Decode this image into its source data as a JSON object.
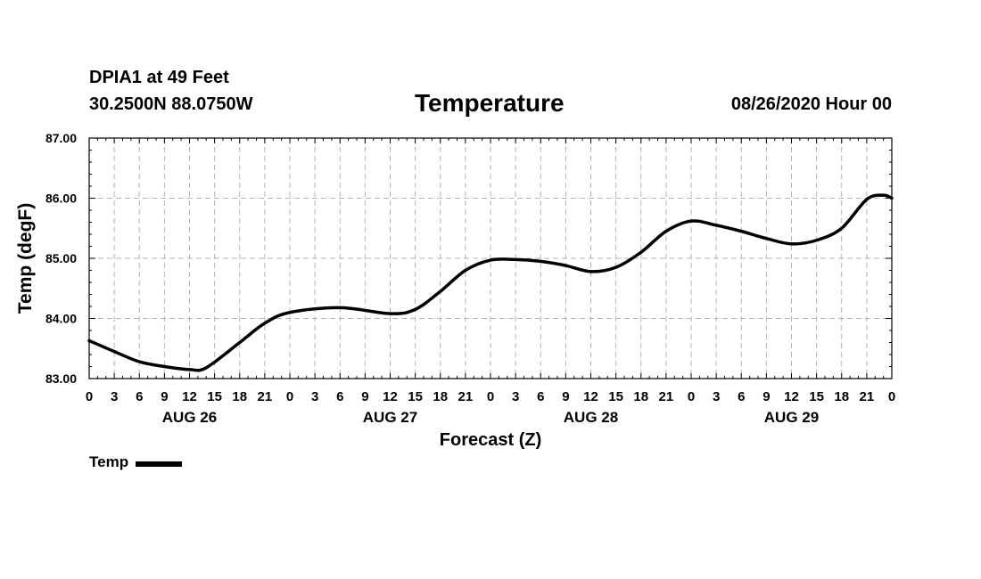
{
  "header": {
    "station": "DPIA1 at 49 Feet",
    "coords": "30.2500N 88.0750W",
    "title": "Temperature",
    "issued": "08/26/2020 Hour 00"
  },
  "legend": {
    "label": "Temp"
  },
  "colors": {
    "line": "#000000",
    "grid": "#b4b4b4",
    "frame": "#000000"
  },
  "chart_data": {
    "type": "line",
    "title": "Temperature",
    "xlabel": "Forecast (Z)",
    "ylabel": "Temp (degF)",
    "x_unit": "forecast hour",
    "xlim": [
      0,
      96
    ],
    "ylim": [
      83.0,
      87.0
    ],
    "grid": true,
    "legend_position": "bottom-left",
    "y_ticks": [
      {
        "value": 83.0,
        "label": "83.00"
      },
      {
        "value": 84.0,
        "label": "84.00"
      },
      {
        "value": 85.0,
        "label": "85.00"
      },
      {
        "value": 86.0,
        "label": "86.00"
      },
      {
        "value": 87.0,
        "label": "87.00"
      }
    ],
    "x_ticks": [
      {
        "value": 0,
        "label": "0"
      },
      {
        "value": 3,
        "label": "3"
      },
      {
        "value": 6,
        "label": "6"
      },
      {
        "value": 9,
        "label": "9"
      },
      {
        "value": 12,
        "label": "12"
      },
      {
        "value": 15,
        "label": "15"
      },
      {
        "value": 18,
        "label": "18"
      },
      {
        "value": 21,
        "label": "21"
      },
      {
        "value": 24,
        "label": "0"
      },
      {
        "value": 27,
        "label": "3"
      },
      {
        "value": 30,
        "label": "6"
      },
      {
        "value": 33,
        "label": "9"
      },
      {
        "value": 36,
        "label": "12"
      },
      {
        "value": 39,
        "label": "15"
      },
      {
        "value": 42,
        "label": "18"
      },
      {
        "value": 45,
        "label": "21"
      },
      {
        "value": 48,
        "label": "0"
      },
      {
        "value": 51,
        "label": "3"
      },
      {
        "value": 54,
        "label": "6"
      },
      {
        "value": 57,
        "label": "9"
      },
      {
        "value": 60,
        "label": "12"
      },
      {
        "value": 63,
        "label": "15"
      },
      {
        "value": 66,
        "label": "18"
      },
      {
        "value": 69,
        "label": "21"
      },
      {
        "value": 72,
        "label": "0"
      },
      {
        "value": 75,
        "label": "3"
      },
      {
        "value": 78,
        "label": "6"
      },
      {
        "value": 81,
        "label": "9"
      },
      {
        "value": 84,
        "label": "12"
      },
      {
        "value": 87,
        "label": "15"
      },
      {
        "value": 90,
        "label": "18"
      },
      {
        "value": 93,
        "label": "21"
      },
      {
        "value": 96,
        "label": "0"
      }
    ],
    "day_labels": [
      {
        "value": 12,
        "label": "AUG 26"
      },
      {
        "value": 36,
        "label": "AUG 27"
      },
      {
        "value": 60,
        "label": "AUG 28"
      },
      {
        "value": 84,
        "label": "AUG 29"
      }
    ],
    "series": [
      {
        "name": "Temp",
        "x": [
          0,
          3,
          6,
          9,
          12,
          14,
          18,
          21,
          24,
          30,
          36,
          39,
          42,
          45,
          48,
          51,
          54,
          57,
          60,
          63,
          66,
          69,
          72,
          75,
          78,
          81,
          84,
          87,
          90,
          93,
          95,
          96
        ],
        "y": [
          83.63,
          83.45,
          83.28,
          83.2,
          83.15,
          83.18,
          83.6,
          83.92,
          84.1,
          84.18,
          84.08,
          84.15,
          84.45,
          84.8,
          84.97,
          84.98,
          84.95,
          84.88,
          84.78,
          84.85,
          85.1,
          85.45,
          85.62,
          85.55,
          85.45,
          85.33,
          85.24,
          85.3,
          85.5,
          85.98,
          86.05,
          86.0
        ]
      }
    ]
  }
}
